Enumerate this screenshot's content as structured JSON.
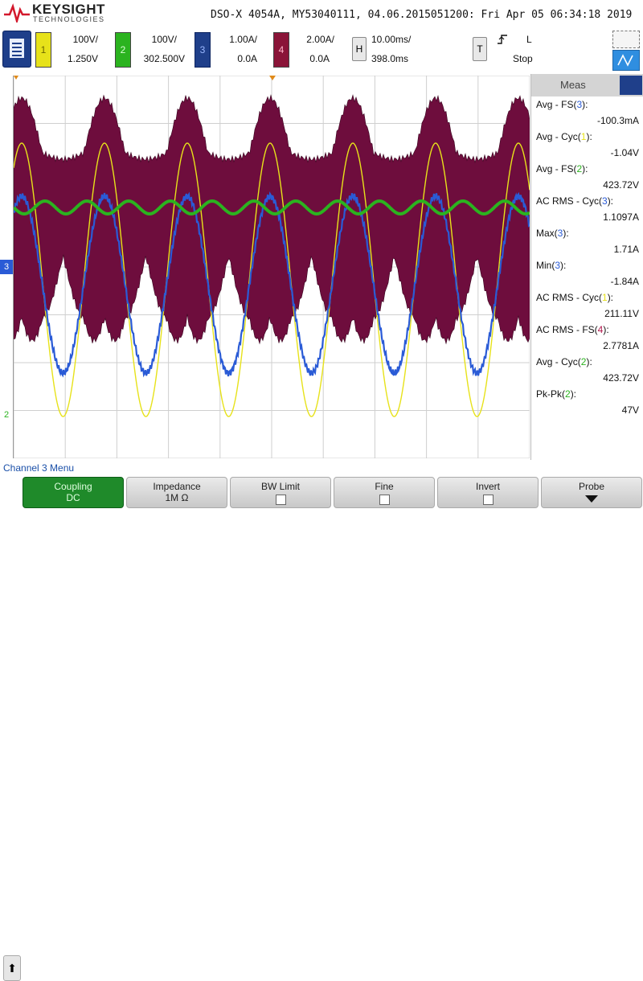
{
  "header": {
    "brand": "KEYSIGHT",
    "brand_sub": "TECHNOLOGIES",
    "model_line": "DSO-X 4054A, MY53040111, 04.06.2015051200: Fri Apr 05 06:34:18 2019"
  },
  "channels": [
    {
      "num": "1",
      "scale": "100V/",
      "offset": "1.250V",
      "color": "#e7e21a"
    },
    {
      "num": "2",
      "scale": "100V/",
      "offset": "302.500V",
      "color": "#2bb31f"
    },
    {
      "num": "3",
      "scale": "1.00A/",
      "offset": "0.0A",
      "color": "#2a5bd6"
    },
    {
      "num": "4",
      "scale": "2.00A/",
      "offset": "0.0A",
      "color": "#b0164a"
    }
  ],
  "timebase": {
    "key": "H",
    "scale": "10.00ms/",
    "delay": "398.0ms"
  },
  "trigger": {
    "key": "T",
    "slope_icon": "rising-edge",
    "level": "L",
    "state": "Stop"
  },
  "markers": {
    "ch3": "3",
    "ch2": "2"
  },
  "measurements": {
    "title": "Meas",
    "items": [
      {
        "label": "Avg - FS(",
        "src": "3",
        "src_color": "#2a5bd6",
        "value": "-100.3mA"
      },
      {
        "label": "Avg - Cyc(",
        "src": "1",
        "src_color": "#e7e21a",
        "value": "-1.04V"
      },
      {
        "label": "Avg - FS(",
        "src": "2",
        "src_color": "#2bb31f",
        "value": "423.72V"
      },
      {
        "label": "AC RMS - Cyc(",
        "src": "3",
        "src_color": "#2a5bd6",
        "value": "1.1097A"
      },
      {
        "label": "Max(",
        "src": "3",
        "src_color": "#2a5bd6",
        "value": "1.71A"
      },
      {
        "label": "Min(",
        "src": "3",
        "src_color": "#2a5bd6",
        "value": "-1.84A"
      },
      {
        "label": "AC RMS - Cyc(",
        "src": "1",
        "src_color": "#e7e21a",
        "value": "211.11V"
      },
      {
        "label": "AC RMS - FS(",
        "src": "4",
        "src_color": "#b0164a",
        "value": "2.7781A"
      },
      {
        "label": "Avg - Cyc(",
        "src": "2",
        "src_color": "#2bb31f",
        "value": "423.72V"
      },
      {
        "label": "Pk-Pk(",
        "src": "2",
        "src_color": "#2bb31f",
        "value": "47V"
      }
    ],
    "add_glyph": "+"
  },
  "softmenu": {
    "title": "Channel 3 Menu",
    "keys": [
      {
        "label": "Coupling",
        "value": "DC"
      },
      {
        "label": "Impedance",
        "value": "1M Ω"
      },
      {
        "label": "BW Limit"
      },
      {
        "label": "Fine"
      },
      {
        "label": "Invert"
      },
      {
        "label": "Probe"
      }
    ]
  }
}
